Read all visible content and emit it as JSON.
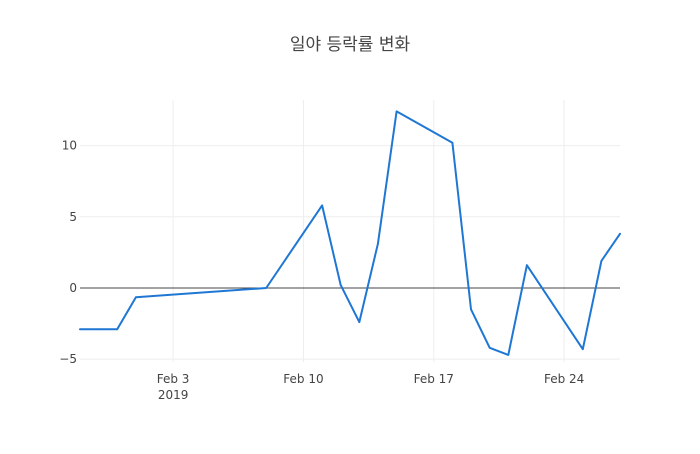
{
  "chart_data": {
    "type": "line",
    "title": "일야 등락률 변화",
    "xlabel": "",
    "ylabel": "",
    "xlim": [
      "2019-01-29",
      "2019-02-27"
    ],
    "ylim": [
      -5.2,
      13.2
    ],
    "grid": true,
    "x_ticks": [
      {
        "date": "2019-02-03",
        "label": "Feb 3",
        "sublabel": "2019"
      },
      {
        "date": "2019-02-10",
        "label": "Feb 10",
        "sublabel": ""
      },
      {
        "date": "2019-02-17",
        "label": "Feb 17",
        "sublabel": ""
      },
      {
        "date": "2019-02-24",
        "label": "Feb 24",
        "sublabel": ""
      }
    ],
    "y_ticks": [
      {
        "value": -5,
        "label": "−5"
      },
      {
        "value": 0,
        "label": "0"
      },
      {
        "value": 5,
        "label": "5"
      },
      {
        "value": 10,
        "label": "10"
      }
    ],
    "series": [
      {
        "name": "",
        "color": "#1f77d4",
        "x": [
          "2019-01-29",
          "2019-01-30",
          "2019-01-31",
          "2019-02-01",
          "2019-02-08",
          "2019-02-11",
          "2019-02-12",
          "2019-02-13",
          "2019-02-14",
          "2019-02-15",
          "2019-02-18",
          "2019-02-19",
          "2019-02-20",
          "2019-02-21",
          "2019-02-22",
          "2019-02-25",
          "2019-02-26",
          "2019-02-27"
        ],
        "y": [
          -2.9,
          -2.9,
          -2.9,
          -0.65,
          0.0,
          5.8,
          0.2,
          -2.4,
          3.1,
          12.4,
          10.2,
          -1.5,
          -4.2,
          -4.7,
          1.6,
          -4.3,
          1.9,
          3.8
        ]
      }
    ]
  }
}
